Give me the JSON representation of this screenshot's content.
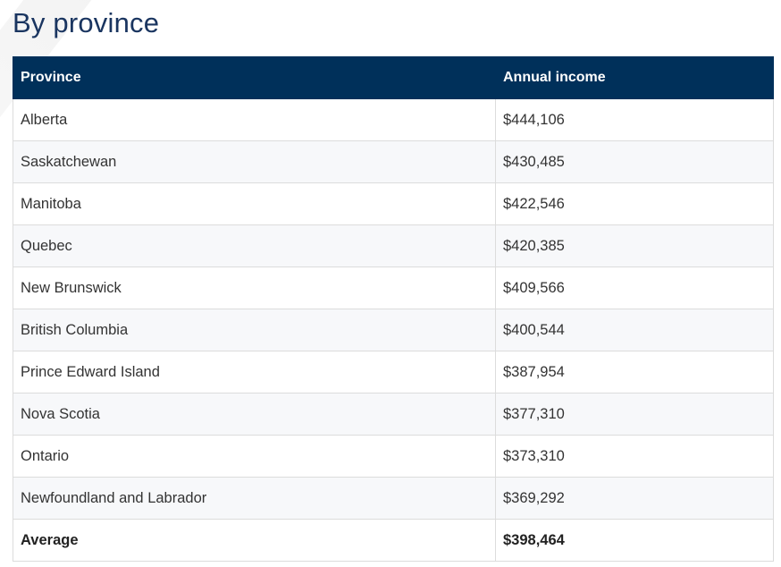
{
  "page": {
    "title": "By province"
  },
  "table": {
    "headers": [
      "Province",
      "Annual income"
    ],
    "rows": [
      {
        "province": "Alberta",
        "income": "$444,106"
      },
      {
        "province": "Saskatchewan",
        "income": "$430,485"
      },
      {
        "province": "Manitoba",
        "income": "$422,546"
      },
      {
        "province": "Quebec",
        "income": "$420,385"
      },
      {
        "province": "New Brunswick",
        "income": "$409,566"
      },
      {
        "province": "British Columbia",
        "income": "$400,544"
      },
      {
        "province": "Prince Edward Island",
        "income": "$387,954"
      },
      {
        "province": "Nova Scotia",
        "income": "$377,310"
      },
      {
        "province": "Ontario",
        "income": "$373,310"
      },
      {
        "province": "Newfoundland and Labrador",
        "income": "$369,292"
      }
    ],
    "average": {
      "label": "Average",
      "income": "$398,464"
    }
  },
  "colors": {
    "header_bg": "#00305a",
    "title": "#1a3560"
  }
}
